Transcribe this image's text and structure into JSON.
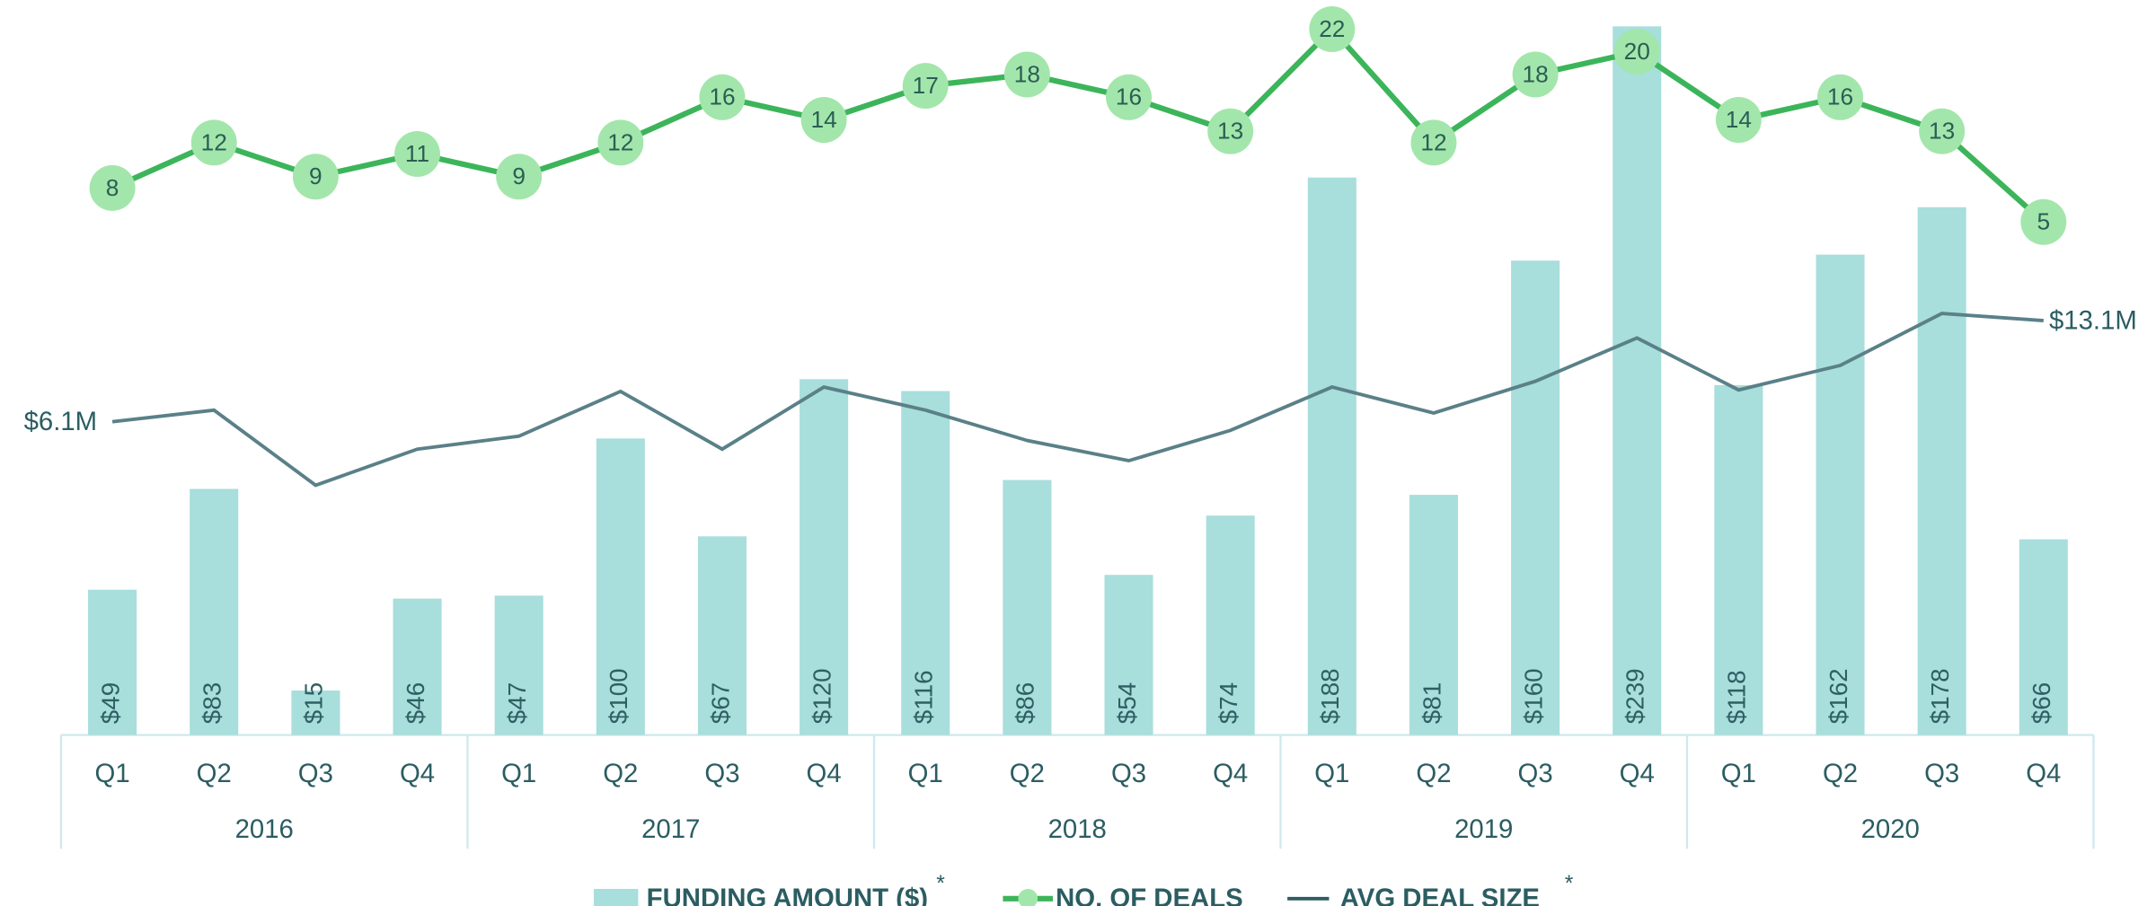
{
  "chart_data": {
    "type": "bar-line",
    "categories": [
      "Q1",
      "Q2",
      "Q3",
      "Q4",
      "Q1",
      "Q2",
      "Q3",
      "Q4",
      "Q1",
      "Q2",
      "Q3",
      "Q4",
      "Q1",
      "Q2",
      "Q3",
      "Q4",
      "Q1",
      "Q2",
      "Q3",
      "Q4"
    ],
    "years": [
      "2016",
      "2017",
      "2018",
      "2019",
      "2020"
    ],
    "series": [
      {
        "name": "FUNDING AMOUNT ($)",
        "type": "bar",
        "color": "#a8dedb",
        "footnote": "*",
        "values": [
          49,
          83,
          15,
          46,
          47,
          100,
          67,
          120,
          116,
          86,
          54,
          74,
          188,
          81,
          160,
          239,
          118,
          162,
          178,
          66
        ],
        "value_labels": [
          "$49",
          "$83",
          "$15",
          "$46",
          "$47",
          "$100",
          "$67",
          "$120",
          "$116",
          "$86",
          "$54",
          "$74",
          "$188",
          "$81",
          "$160",
          "$239",
          "$118",
          "$162",
          "$178",
          "$66"
        ]
      },
      {
        "name": "NO. OF DEALS",
        "type": "line",
        "color": "#3cb55a",
        "marker_color": "#a3e6ab",
        "values": [
          8,
          12,
          9,
          11,
          9,
          12,
          16,
          14,
          17,
          18,
          16,
          13,
          22,
          12,
          18,
          20,
          14,
          16,
          13,
          5
        ]
      },
      {
        "name": "AVG DEAL SIZE",
        "type": "line",
        "color": "#5a8088",
        "footnote": "*",
        "values": [
          6.1,
          6.9,
          1.7,
          4.2,
          5.1,
          8.2,
          4.2,
          8.5,
          6.9,
          4.8,
          3.4,
          5.5,
          8.5,
          6.7,
          8.9,
          11.9,
          8.3,
          10.0,
          13.6,
          13.1
        ],
        "value_labels": [
          "$6.1M",
          null,
          null,
          null,
          null,
          null,
          null,
          null,
          null,
          null,
          null,
          null,
          null,
          null,
          null,
          null,
          null,
          null,
          null,
          "$13.1M"
        ]
      }
    ]
  }
}
